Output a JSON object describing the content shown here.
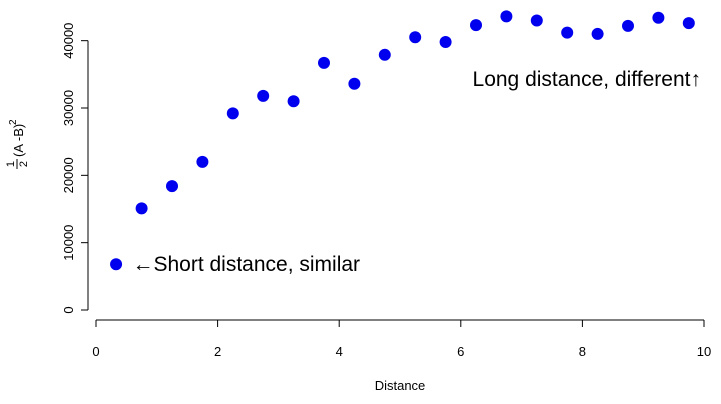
{
  "chart_data": {
    "type": "scatter",
    "xlabel": "Distance",
    "ylabel": {
      "frac_numerator": "1",
      "frac_denominator": "2",
      "expression": "(A -B)",
      "exponent": "2"
    },
    "xlim": [
      0,
      10
    ],
    "ylim": [
      0,
      45000
    ],
    "x_ticks": [
      0,
      2,
      4,
      6,
      8,
      10
    ],
    "y_ticks": [
      0,
      10000,
      20000,
      30000,
      40000
    ],
    "grid": false,
    "point_color": "#0000ee",
    "series": [
      {
        "x": [
          0.33,
          0.75,
          1.25,
          1.75,
          2.25,
          2.75,
          3.25,
          3.75,
          4.25,
          4.75,
          5.25,
          5.75,
          6.25,
          6.75,
          7.25,
          7.75,
          8.25,
          8.75,
          9.25,
          9.75
        ],
        "y": [
          6800,
          15100,
          18400,
          22000,
          29200,
          31800,
          31000,
          36700,
          33600,
          37900,
          40500,
          39800,
          42300,
          43600,
          43000,
          41200,
          41000,
          42200,
          43400,
          42600
        ]
      }
    ],
    "annotations": [
      {
        "text": "←Short distance, similar",
        "x": 0.6,
        "y": 6800,
        "anchor": "start"
      },
      {
        "text": "Long distance, different↑",
        "x": 9.95,
        "y": 34300,
        "anchor": "end"
      }
    ]
  }
}
